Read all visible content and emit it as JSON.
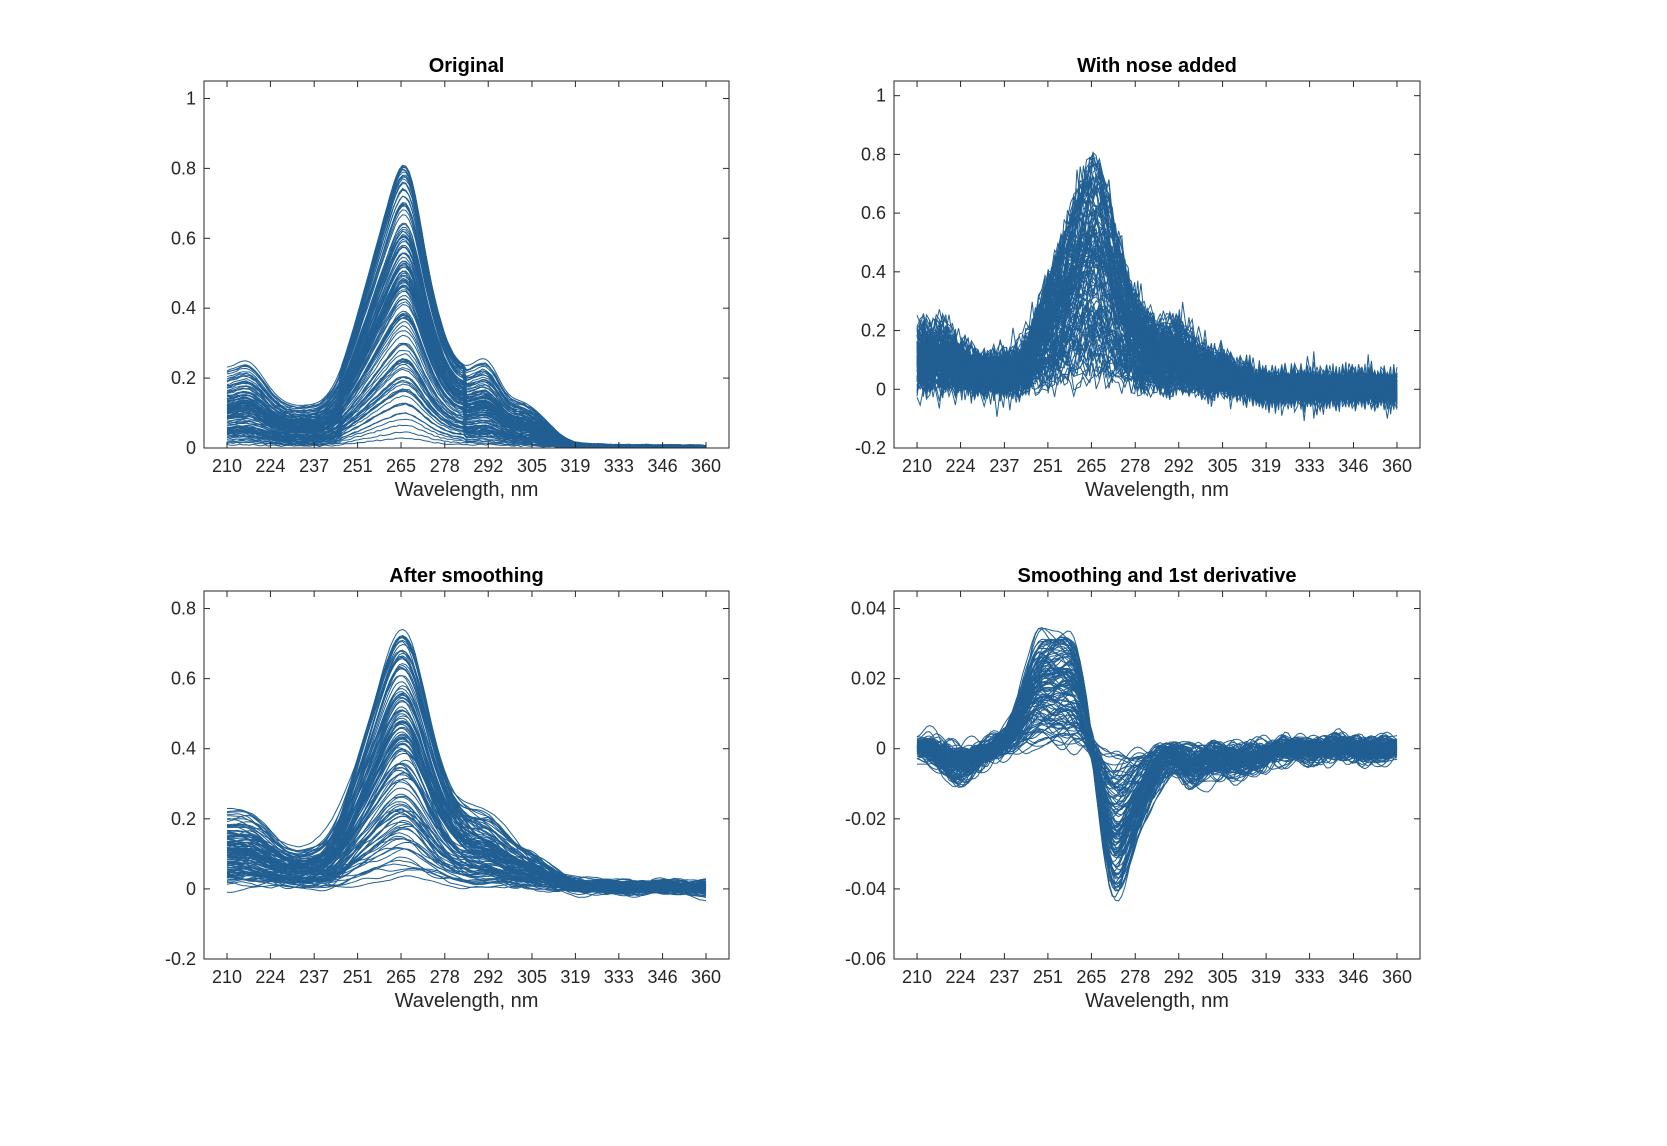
{
  "chart_data": [
    {
      "type": "line",
      "title": "Original",
      "xlabel": "Wavelength, nm",
      "ylabel": "",
      "xlim": [
        202.8,
        367.2
      ],
      "ylim": [
        0,
        1.05
      ],
      "xtick_values": [
        210,
        223.6,
        237.3,
        250.9,
        264.5,
        278.2,
        291.8,
        305.5,
        319.1,
        332.7,
        346.4,
        360
      ],
      "xtick_labels": [
        "210",
        "224",
        "237",
        "251",
        "265",
        "278",
        "292",
        "305",
        "319",
        "333",
        "346",
        "360"
      ],
      "ytick_values": [
        0,
        0.2,
        0.4,
        0.6,
        0.8,
        1
      ],
      "ytick_labels": [
        "0",
        "0.2",
        "0.4",
        "0.6",
        "0.8",
        "1"
      ],
      "series_color": "#215f93",
      "processing": "raw",
      "n_spectra": 120,
      "max_peak": 0.85,
      "base_spectrum": {
        "wavelengths": [
          210,
          214,
          217,
          220,
          225,
          229,
          233,
          237,
          240,
          245,
          250,
          253,
          258,
          262,
          265,
          268,
          272,
          276,
          280,
          285,
          289,
          291,
          294,
          297,
          300,
          304,
          310,
          315,
          320,
          330,
          360
        ],
        "values": [
          0.22,
          0.25,
          0.26,
          0.22,
          0.15,
          0.125,
          0.12,
          0.125,
          0.13,
          0.2,
          0.35,
          0.45,
          0.62,
          0.75,
          0.85,
          0.8,
          0.55,
          0.38,
          0.27,
          0.22,
          0.26,
          0.27,
          0.23,
          0.15,
          0.14,
          0.13,
          0.08,
          0.03,
          0.012,
          0.008,
          0.006
        ]
      }
    },
    {
      "type": "line",
      "title": "With nose added",
      "xlabel": "Wavelength, nm",
      "ylabel": "",
      "xlim": [
        202.8,
        367.2
      ],
      "ylim": [
        -0.2,
        1.05
      ],
      "xtick_values": [
        210,
        223.6,
        237.3,
        250.9,
        264.5,
        278.2,
        291.8,
        305.5,
        319.1,
        332.7,
        346.4,
        360
      ],
      "xtick_labels": [
        "210",
        "224",
        "237",
        "251",
        "265",
        "278",
        "292",
        "305",
        "319",
        "333",
        "346",
        "360"
      ],
      "ytick_values": [
        -0.2,
        0,
        0.2,
        0.4,
        0.6,
        0.8,
        1
      ],
      "ytick_labels": [
        "-0.2",
        "0",
        "0.2",
        "0.4",
        "0.6",
        "0.8",
        "1"
      ],
      "series_color": "#215f93",
      "processing": "noise",
      "noise_sd": 0.035
    },
    {
      "type": "line",
      "title": "After smoothing",
      "xlabel": "Wavelength, nm",
      "ylabel": "",
      "xlim": [
        202.8,
        367.2
      ],
      "ylim": [
        -0.2,
        0.85
      ],
      "xtick_values": [
        210,
        223.6,
        237.3,
        250.9,
        264.5,
        278.2,
        291.8,
        305.5,
        319.1,
        332.7,
        346.4,
        360
      ],
      "xtick_labels": [
        "210",
        "224",
        "237",
        "251",
        "265",
        "278",
        "292",
        "305",
        "319",
        "333",
        "346",
        "360"
      ],
      "ytick_values": [
        -0.2,
        0,
        0.2,
        0.4,
        0.6,
        0.8
      ],
      "ytick_labels": [
        "-0.2",
        "0",
        "0.2",
        "0.4",
        "0.6",
        "0.8"
      ],
      "series_color": "#215f93",
      "processing": "smooth"
    },
    {
      "type": "line",
      "title": "Smoothing and 1st derivative",
      "xlabel": "Wavelength, nm",
      "ylabel": "",
      "xlim": [
        202.8,
        367.2
      ],
      "ylim": [
        -0.06,
        0.045
      ],
      "xtick_values": [
        210,
        223.6,
        237.3,
        250.9,
        264.5,
        278.2,
        291.8,
        305.5,
        319.1,
        332.7,
        346.4,
        360
      ],
      "xtick_labels": [
        "210",
        "224",
        "237",
        "251",
        "265",
        "278",
        "292",
        "305",
        "319",
        "333",
        "346",
        "360"
      ],
      "ytick_values": [
        -0.06,
        -0.04,
        -0.02,
        0,
        0.02,
        0.04
      ],
      "ytick_labels": [
        "-0.06",
        "-0.04",
        "-0.02",
        "0",
        "0.02",
        "0.04"
      ],
      "series_color": "#215f93",
      "processing": "derivative"
    }
  ]
}
